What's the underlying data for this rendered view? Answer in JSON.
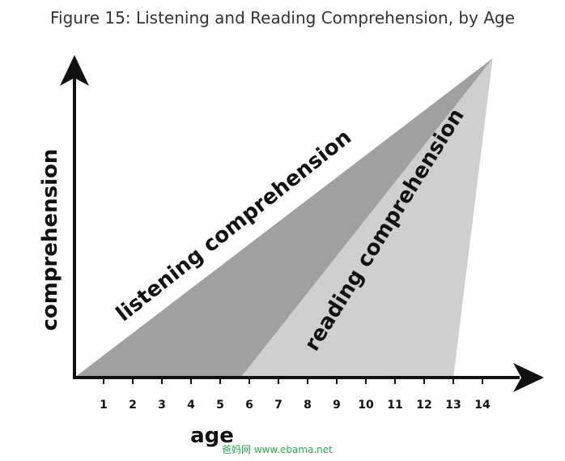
{
  "title": "Figure 15: Listening and Reading Comprehension, by Age",
  "watermark": "爸妈网 www.ebama.net",
  "chart_data": {
    "type": "area",
    "xlabel": "age",
    "ylabel": "comprehension",
    "x_ticks": [
      1,
      2,
      3,
      4,
      5,
      6,
      7,
      8,
      9,
      10,
      11,
      12,
      13,
      14
    ],
    "xlim": [
      0,
      14.35
    ],
    "ylim": [
      0,
      1
    ],
    "grid": false,
    "legend": "none",
    "series": [
      {
        "name": "listening comprehension",
        "color": "#a0a0a0",
        "x": [
          0,
          14.35
        ],
        "y": [
          0,
          1
        ]
      },
      {
        "name": "reading comprehension",
        "color": "#cfcfcf",
        "x": [
          5.7,
          13.0,
          14.35
        ],
        "y": [
          0,
          0,
          1
        ]
      }
    ]
  }
}
